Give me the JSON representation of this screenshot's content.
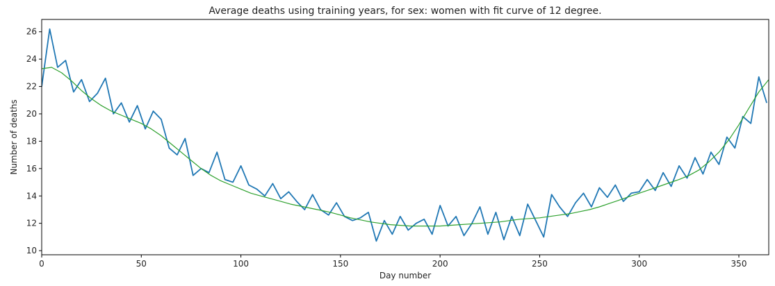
{
  "chart_data": {
    "type": "line",
    "title": "Average deaths using training years, for sex: women with fit curve of 12 degree.",
    "xlabel": "Day number",
    "ylabel": "Number of deaths",
    "xlim": [
      0,
      365
    ],
    "ylim": [
      9.7,
      26.9
    ],
    "xticks": [
      0,
      50,
      100,
      150,
      200,
      250,
      300,
      350
    ],
    "yticks": [
      10,
      12,
      14,
      16,
      18,
      20,
      22,
      24,
      26
    ],
    "grid": false,
    "legend": "none",
    "series": [
      {
        "color": "#1f77b4",
        "x": [
          0,
          4,
          8,
          12,
          16,
          20,
          24,
          28,
          32,
          36,
          40,
          44,
          48,
          52,
          56,
          60,
          64,
          68,
          72,
          76,
          80,
          84,
          88,
          92,
          96,
          100,
          104,
          108,
          112,
          116,
          120,
          124,
          128,
          132,
          136,
          140,
          144,
          148,
          152,
          156,
          160,
          164,
          168,
          172,
          176,
          180,
          184,
          188,
          192,
          196,
          200,
          204,
          208,
          212,
          216,
          220,
          224,
          228,
          232,
          236,
          240,
          244,
          248,
          252,
          256,
          260,
          264,
          268,
          272,
          276,
          280,
          284,
          288,
          292,
          296,
          300,
          304,
          308,
          312,
          316,
          320,
          324,
          328,
          332,
          336,
          340,
          344,
          348,
          352,
          356,
          360,
          364
        ],
        "y": [
          22.0,
          26.2,
          23.4,
          23.9,
          21.6,
          22.5,
          20.9,
          21.5,
          22.6,
          20.0,
          20.8,
          19.4,
          20.6,
          18.9,
          20.2,
          19.6,
          17.5,
          17.0,
          18.2,
          15.5,
          16.0,
          15.7,
          17.2,
          15.2,
          15.0,
          16.2,
          14.8,
          14.5,
          14.0,
          14.9,
          13.8,
          14.3,
          13.6,
          13.0,
          14.1,
          13.0,
          12.6,
          13.5,
          12.5,
          12.2,
          12.4,
          12.8,
          10.7,
          12.2,
          11.2,
          12.5,
          11.5,
          12.0,
          12.3,
          11.2,
          13.3,
          11.8,
          12.5,
          11.1,
          12.0,
          13.2,
          11.2,
          12.8,
          10.8,
          12.5,
          11.1,
          13.4,
          12.2,
          11.0,
          14.1,
          13.2,
          12.5,
          13.5,
          14.2,
          13.2,
          14.6,
          13.9,
          14.8,
          13.6,
          14.2,
          14.3,
          15.2,
          14.4,
          15.7,
          14.7,
          16.2,
          15.3,
          16.8,
          15.6,
          17.2,
          16.3,
          18.3,
          17.5,
          19.8,
          19.3,
          22.7,
          20.8
        ]
      },
      {
        "color": "#2ca02c",
        "x": [
          0,
          5,
          10,
          15,
          20,
          25,
          30,
          35,
          40,
          45,
          50,
          55,
          60,
          65,
          70,
          75,
          80,
          85,
          90,
          95,
          100,
          105,
          110,
          115,
          120,
          125,
          130,
          135,
          140,
          145,
          150,
          155,
          160,
          165,
          170,
          175,
          180,
          185,
          190,
          195,
          200,
          205,
          210,
          215,
          220,
          225,
          230,
          235,
          240,
          245,
          250,
          255,
          260,
          265,
          270,
          275,
          280,
          285,
          290,
          295,
          300,
          305,
          310,
          315,
          320,
          325,
          330,
          335,
          340,
          345,
          350,
          355,
          360,
          365
        ],
        "y": [
          23.3,
          23.4,
          23.0,
          22.4,
          21.7,
          21.1,
          20.6,
          20.2,
          19.9,
          19.6,
          19.3,
          18.9,
          18.4,
          17.8,
          17.2,
          16.6,
          16.0,
          15.5,
          15.1,
          14.8,
          14.5,
          14.2,
          14.0,
          13.8,
          13.6,
          13.4,
          13.25,
          13.1,
          12.95,
          12.8,
          12.6,
          12.4,
          12.25,
          12.1,
          12.0,
          11.9,
          11.85,
          11.8,
          11.8,
          11.8,
          11.8,
          11.85,
          11.9,
          11.95,
          12.0,
          12.05,
          12.1,
          12.2,
          12.3,
          12.35,
          12.4,
          12.5,
          12.6,
          12.7,
          12.85,
          13.0,
          13.2,
          13.45,
          13.7,
          13.95,
          14.2,
          14.45,
          14.7,
          14.95,
          15.2,
          15.5,
          15.9,
          16.5,
          17.2,
          18.1,
          19.2,
          20.4,
          21.6,
          22.5
        ]
      }
    ]
  }
}
